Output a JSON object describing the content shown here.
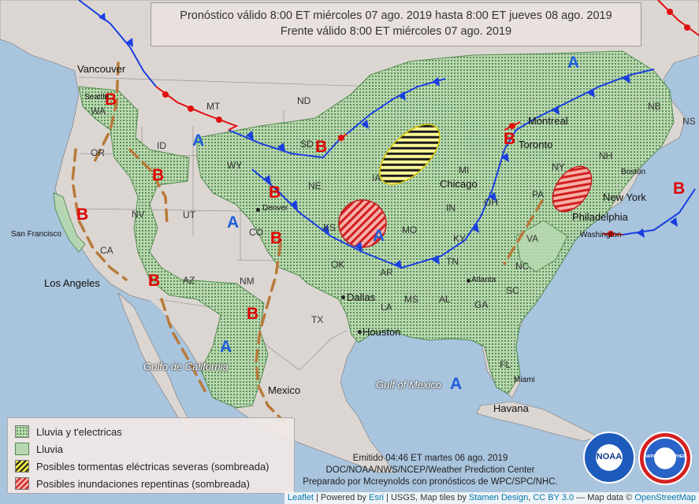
{
  "header": {
    "forecast_line": "Pronóstico válido 8:00 ET miércoles 07 ago. 2019 hasta 8:00 ET jueves 08 ago. 2019",
    "front_line": "Frente válido 8:00 ET miércoles 07 ago. 2019"
  },
  "legend": {
    "items": [
      {
        "label": "Lluvia y t'electricas",
        "swatch": "rain-thunder-icon"
      },
      {
        "label": "Lluvia",
        "swatch": "rain-icon"
      },
      {
        "label": "Posibles tormentas eléctricas severas (sombreada)",
        "swatch": "severe-storm-hatch-icon"
      },
      {
        "label": "Posibles inundaciones repentinas (sombreada)",
        "swatch": "flash-flood-hatch-icon"
      }
    ]
  },
  "issued": {
    "line1": "Emitido 04:46 ET martes 06 ago. 2019",
    "line2": "DOC/NOAA/NWS/NCEP/Weather Prediction Center",
    "line3": "Preparado por Mcreynolds con pronósticos de WPC/SPC/NHC."
  },
  "attribution": {
    "leaflet": "Leaflet",
    "powered": " | Powered by ",
    "esri": "Esri",
    "usgs": " | USGS, Map tiles by ",
    "stamen": "Stamen Design",
    "cc": "CC BY 3.0",
    "mapdata": " — Map data © ",
    "osm": "OpenStreetMap"
  },
  "logos": {
    "noaa": "NOAA",
    "nws": "NATIONAL WEATHER SERVICE"
  },
  "pressure_labels": {
    "high": "B",
    "low": "A"
  },
  "states": [
    "WA",
    "OR",
    "ID",
    "MT",
    "ND",
    "SD",
    "WY",
    "NE",
    "NV",
    "UT",
    "CO",
    "CA",
    "AZ",
    "NM",
    "KS",
    "OK",
    "TX",
    "AR",
    "LA",
    "MS",
    "AL",
    "GA",
    "SC",
    "NC",
    "TN",
    "KY",
    "VA",
    "IN",
    "OH",
    "MO",
    "IA",
    "MI",
    "PA",
    "NY",
    "NB",
    "NS",
    "NH",
    "FL"
  ],
  "cities": [
    "Vancouver",
    "Seattle",
    "San Francisco",
    "Los Angeles",
    "Denver",
    "Dallas",
    "Houston",
    "Atlanta",
    "Chicago",
    "Toronto",
    "Montreal",
    "Boston",
    "New York",
    "Philadelphia",
    "Washington",
    "Miami",
    "Havana",
    "Mexico"
  ],
  "water": [
    "Golfo de California",
    "Gulf of Mexico"
  ],
  "colors": {
    "rain": "#b8d9b0",
    "rain_dots": "#3c7a3c",
    "severe": "#f0ee40",
    "flood": "#e04848",
    "cold_front": "#1a3fe0",
    "warm_front": "#e01010",
    "trough": "#b87333"
  }
}
